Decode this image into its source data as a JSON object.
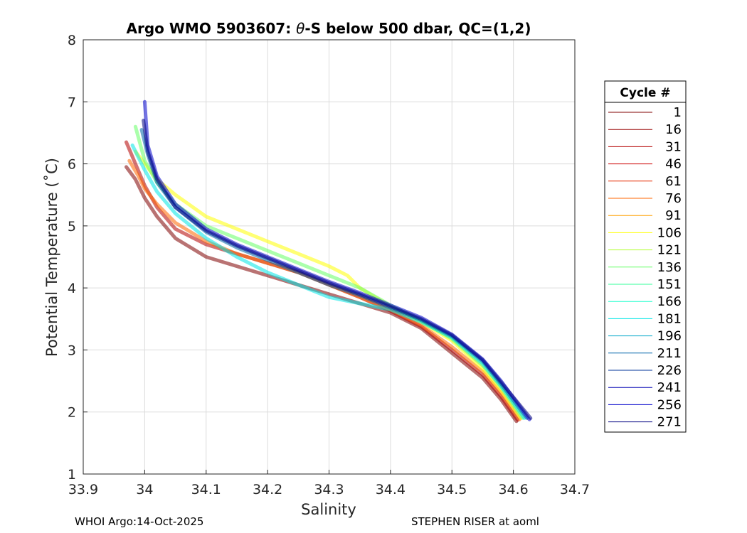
{
  "chart_data": {
    "type": "line",
    "title_prefix": "Argo WMO 5903607: ",
    "title_theta": "θ",
    "title_suffix": "-S below 500 dbar,  QC=(1,2)",
    "xlabel": "Salinity",
    "ylabel": "Potential Temperature (˚C)",
    "xlim": [
      33.9,
      34.7
    ],
    "ylim": [
      1,
      8
    ],
    "xticks": [
      "33.9",
      "34",
      "34.1",
      "34.2",
      "34.3",
      "34.4",
      "34.5",
      "34.6",
      "34.7"
    ],
    "yticks": [
      "1",
      "2",
      "3",
      "4",
      "5",
      "6",
      "7",
      "8"
    ],
    "grid": true,
    "legend_title": "Cycle #",
    "legend_position": "right",
    "legend": [
      {
        "label": "1",
        "color": "#800000"
      },
      {
        "label": "16",
        "color": "#990000"
      },
      {
        "label": "31",
        "color": "#b30000"
      },
      {
        "label": "46",
        "color": "#cc0000"
      },
      {
        "label": "61",
        "color": "#e62a00"
      },
      {
        "label": "76",
        "color": "#ff6600"
      },
      {
        "label": "91",
        "color": "#ffa000"
      },
      {
        "label": "106",
        "color": "#ffff00"
      },
      {
        "label": "121",
        "color": "#b3ff33"
      },
      {
        "label": "136",
        "color": "#66ff66"
      },
      {
        "label": "151",
        "color": "#33ff99"
      },
      {
        "label": "166",
        "color": "#1affcc"
      },
      {
        "label": "181",
        "color": "#00e6e6"
      },
      {
        "label": "196",
        "color": "#00a6c8"
      },
      {
        "label": "211",
        "color": "#0066aa"
      },
      {
        "label": "226",
        "color": "#003399"
      },
      {
        "label": "241",
        "color": "#0000b3"
      },
      {
        "label": "256",
        "color": "#0000cc"
      },
      {
        "label": "271",
        "color": "#000080"
      }
    ],
    "series": [
      {
        "color": "#800000",
        "x": [
          33.97,
          33.985,
          34.0,
          34.02,
          34.05,
          34.1,
          34.15,
          34.2,
          34.25,
          34.3,
          34.35,
          34.4,
          34.45,
          34.5,
          34.55,
          34.58,
          34.605
        ],
        "y": [
          5.95,
          5.75,
          5.45,
          5.15,
          4.8,
          4.5,
          4.35,
          4.2,
          4.05,
          3.9,
          3.75,
          3.6,
          3.35,
          2.95,
          2.55,
          2.2,
          1.85
        ]
      },
      {
        "color": "#b30000",
        "x": [
          33.97,
          33.985,
          34.0,
          34.02,
          34.05,
          34.1,
          34.15,
          34.2,
          34.25,
          34.3,
          34.35,
          34.4,
          34.45,
          34.5,
          34.55,
          34.58,
          34.607
        ],
        "y": [
          6.35,
          6.0,
          5.65,
          5.3,
          4.95,
          4.7,
          4.55,
          4.4,
          4.25,
          4.05,
          3.85,
          3.63,
          3.38,
          3.0,
          2.6,
          2.25,
          1.87
        ]
      },
      {
        "color": "#ff6600",
        "x": [
          33.975,
          33.99,
          34.0,
          34.02,
          34.05,
          34.1,
          34.15,
          34.2,
          34.25,
          34.3,
          34.35,
          34.4,
          34.45,
          34.5,
          34.55,
          34.58,
          34.61
        ],
        "y": [
          6.05,
          5.8,
          5.6,
          5.35,
          5.05,
          4.75,
          4.55,
          4.4,
          4.25,
          4.05,
          3.85,
          3.65,
          3.4,
          3.05,
          2.65,
          2.3,
          1.88
        ]
      },
      {
        "color": "#ffff00",
        "x": [
          33.985,
          34.0,
          34.02,
          34.05,
          34.1,
          34.15,
          34.2,
          34.25,
          34.3,
          34.33,
          34.35,
          34.4,
          34.45,
          34.5,
          34.55,
          34.58,
          34.612
        ],
        "y": [
          6.2,
          6.0,
          5.75,
          5.5,
          5.15,
          4.95,
          4.75,
          4.55,
          4.35,
          4.2,
          4.0,
          3.7,
          3.45,
          3.15,
          2.7,
          2.35,
          1.9
        ]
      },
      {
        "color": "#66ff66",
        "x": [
          33.985,
          34.0,
          34.02,
          34.05,
          34.1,
          34.15,
          34.2,
          34.25,
          34.3,
          34.35,
          34.4,
          34.45,
          34.5,
          34.55,
          34.58,
          34.615
        ],
        "y": [
          6.6,
          6.05,
          5.7,
          5.35,
          5.0,
          4.8,
          4.6,
          4.4,
          4.2,
          4.0,
          3.72,
          3.47,
          3.18,
          2.75,
          2.4,
          1.9
        ]
      },
      {
        "color": "#00e6e6",
        "x": [
          33.98,
          34.0,
          34.02,
          34.05,
          34.1,
          34.15,
          34.2,
          34.25,
          34.3,
          34.35,
          34.4,
          34.45,
          34.5,
          34.55,
          34.58,
          34.618
        ],
        "y": [
          6.3,
          5.9,
          5.55,
          5.2,
          4.8,
          4.5,
          4.25,
          4.05,
          3.85,
          3.75,
          3.65,
          3.45,
          3.2,
          2.78,
          2.42,
          1.9
        ]
      },
      {
        "color": "#0066aa",
        "x": [
          33.995,
          34.005,
          34.02,
          34.05,
          34.1,
          34.15,
          34.2,
          34.25,
          34.3,
          34.35,
          34.4,
          34.45,
          34.5,
          34.55,
          34.58,
          34.622
        ],
        "y": [
          6.55,
          6.15,
          5.7,
          5.3,
          4.9,
          4.65,
          4.45,
          4.25,
          4.05,
          3.88,
          3.68,
          3.48,
          3.22,
          2.82,
          2.45,
          1.9
        ]
      },
      {
        "color": "#0000cc",
        "x": [
          34.0,
          34.005,
          34.02,
          34.05,
          34.1,
          34.15,
          34.2,
          34.25,
          34.3,
          34.35,
          34.4,
          34.45,
          34.5,
          34.55,
          34.58,
          34.626
        ],
        "y": [
          7.0,
          6.3,
          5.8,
          5.35,
          4.95,
          4.7,
          4.5,
          4.3,
          4.1,
          3.92,
          3.72,
          3.52,
          3.25,
          2.85,
          2.5,
          1.88
        ]
      },
      {
        "color": "#000080",
        "x": [
          33.998,
          34.005,
          34.02,
          34.05,
          34.1,
          34.15,
          34.2,
          34.25,
          34.3,
          34.35,
          34.4,
          34.45,
          34.5,
          34.55,
          34.58,
          34.628
        ],
        "y": [
          6.7,
          6.2,
          5.75,
          5.3,
          4.92,
          4.68,
          4.48,
          4.28,
          4.08,
          3.9,
          3.7,
          3.5,
          3.24,
          2.84,
          2.48,
          1.9
        ]
      }
    ]
  },
  "footer": {
    "left": "WHOI Argo:14-Oct-2025",
    "right": "STEPHEN RISER at aoml"
  }
}
